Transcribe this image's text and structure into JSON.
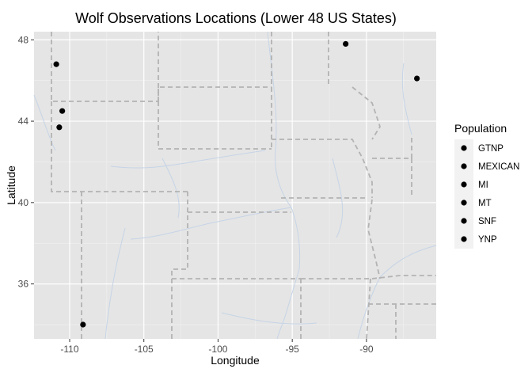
{
  "chart_data": {
    "type": "scatter",
    "title": "Wolf Observations Locations (Lower 48 US States)",
    "xlabel": "Longitude",
    "ylabel": "Latitude",
    "xlim": [
      -112.4,
      -85.3
    ],
    "ylim": [
      33.3,
      48.4
    ],
    "x_ticks": [
      -110,
      -105,
      -100,
      -95,
      -90
    ],
    "x_tick_labels": [
      "-110",
      "-105",
      "-100",
      "-95",
      "-90"
    ],
    "y_ticks": [
      36,
      40,
      44,
      48
    ],
    "y_tick_labels": [
      "36",
      "40",
      "44",
      "48"
    ],
    "grid": true,
    "legend": {
      "title": "Population",
      "position": "right",
      "entries": [
        "GTNP",
        "MEXICAN",
        "MI",
        "MT",
        "SNF",
        "YNP"
      ]
    },
    "points": [
      {
        "x": -110.9,
        "y": 46.8
      },
      {
        "x": -110.5,
        "y": 44.5
      },
      {
        "x": -110.7,
        "y": 43.7
      },
      {
        "x": -109.1,
        "y": 34.0
      },
      {
        "x": -91.4,
        "y": 47.8
      },
      {
        "x": -86.6,
        "y": 46.1
      }
    ],
    "colors": {
      "panel": "#e5e5e5",
      "grid_major": "#ffffff",
      "grid_minor": "#f2f2f2",
      "point": "#000000",
      "border": "#b3b3b3",
      "river": "#c6d4e6"
    }
  }
}
